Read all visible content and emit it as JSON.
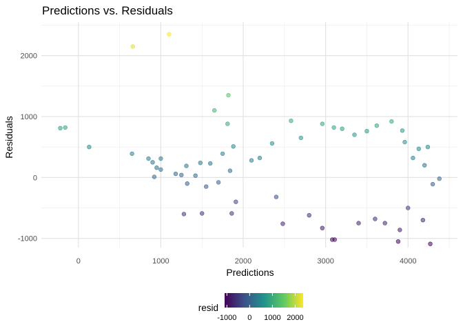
{
  "chart_data": {
    "type": "scatter",
    "title": "Predictions vs. Residuals",
    "xlabel": "Predictions",
    "ylabel": "Residuals",
    "xlim": [
      -450,
      4600
    ],
    "ylim": [
      -1150,
      2550
    ],
    "x_ticks": [
      0,
      1000,
      2000,
      3000,
      4000
    ],
    "x_tick_labels": [
      "0",
      "1000",
      "2000",
      "3000",
      "4000"
    ],
    "y_ticks": [
      -1000,
      0,
      1000,
      2000
    ],
    "y_tick_labels": [
      "-1000",
      "0",
      "1000",
      "2000"
    ],
    "grid": true,
    "color_scale": {
      "name": "resid",
      "palette": "viridis",
      "range": [
        -1100,
        2350
      ],
      "colors": [
        "#440154",
        "#3b528b",
        "#21918c",
        "#5ec962",
        "#fde725"
      ],
      "ticks": [
        -1000,
        0,
        1000,
        2000
      ],
      "tick_labels": [
        "-1000",
        "0",
        "1000",
        "2000"
      ]
    },
    "legend_position": "bottom",
    "points": [
      [
        -220,
        810
      ],
      [
        -160,
        820
      ],
      [
        130,
        500
      ],
      [
        660,
        2150
      ],
      [
        1100,
        2350
      ],
      [
        1650,
        1100
      ],
      [
        1810,
        880
      ],
      [
        1820,
        1350
      ],
      [
        650,
        390
      ],
      [
        850,
        310
      ],
      [
        1000,
        310
      ],
      [
        900,
        250
      ],
      [
        950,
        160
      ],
      [
        1000,
        130
      ],
      [
        920,
        10
      ],
      [
        1310,
        190
      ],
      [
        1480,
        240
      ],
      [
        1600,
        230
      ],
      [
        1750,
        390
      ],
      [
        1880,
        510
      ],
      [
        2580,
        930
      ],
      [
        2960,
        880
      ],
      [
        3800,
        920
      ],
      [
        3930,
        770
      ],
      [
        3100,
        820
      ],
      [
        3200,
        800
      ],
      [
        3620,
        850
      ],
      [
        4060,
        320
      ],
      [
        4130,
        470
      ],
      [
        4240,
        500
      ],
      [
        4380,
        -20
      ],
      [
        4300,
        -110
      ],
      [
        4200,
        200
      ],
      [
        1280,
        -600
      ],
      [
        1500,
        -590
      ],
      [
        1860,
        -590
      ],
      [
        1910,
        -400
      ],
      [
        2480,
        -760
      ],
      [
        2960,
        -830
      ],
      [
        3080,
        -1020
      ],
      [
        3110,
        -1020
      ],
      [
        3900,
        -860
      ],
      [
        3880,
        -1050
      ],
      [
        4270,
        -1090
      ],
      [
        4180,
        -700
      ],
      [
        3720,
        -750
      ],
      [
        1180,
        60
      ],
      [
        1250,
        40
      ],
      [
        1320,
        -100
      ],
      [
        1420,
        30
      ],
      [
        1550,
        -150
      ],
      [
        1700,
        -80
      ],
      [
        1840,
        110
      ],
      [
        2100,
        280
      ],
      [
        2200,
        320
      ],
      [
        2350,
        560
      ],
      [
        2400,
        -320
      ],
      [
        2700,
        650
      ],
      [
        2800,
        -620
      ],
      [
        3350,
        700
      ],
      [
        3500,
        760
      ],
      [
        3600,
        -680
      ],
      [
        3400,
        -750
      ],
      [
        3960,
        580
      ],
      [
        4000,
        -500
      ]
    ]
  }
}
